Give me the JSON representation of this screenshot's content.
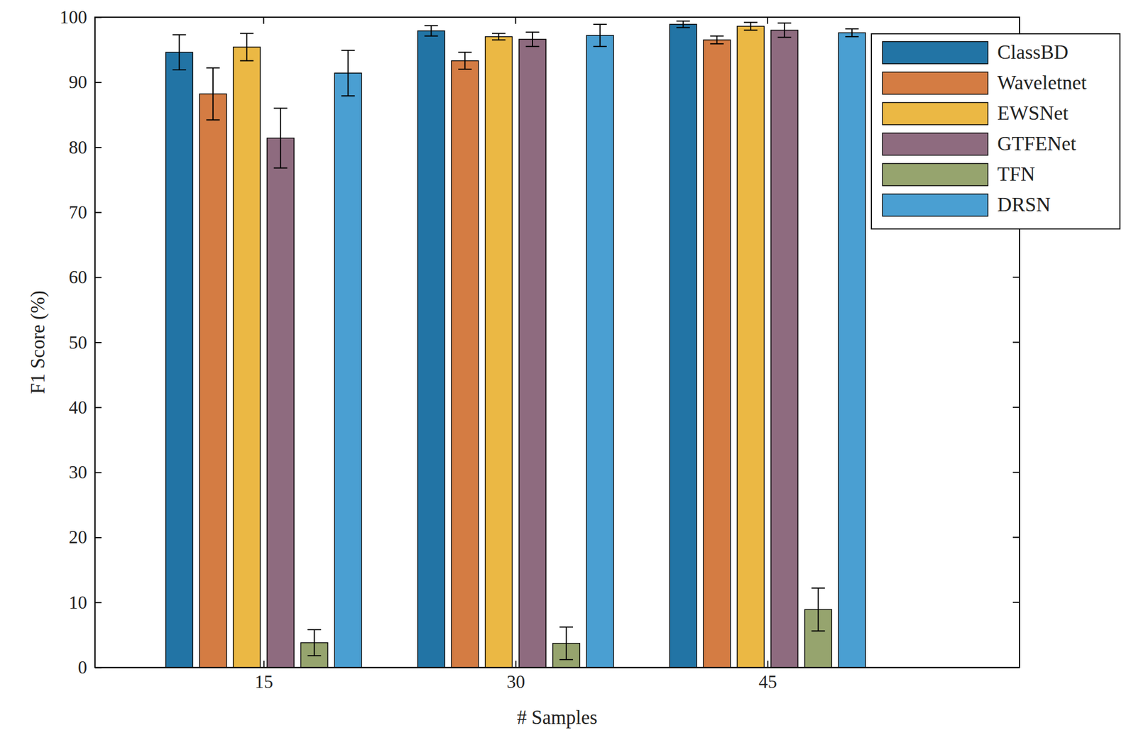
{
  "chart_data": {
    "type": "bar",
    "x_label": "# Samples",
    "y_label": "F1 Score (%)",
    "categories": [
      "15",
      "30",
      "45"
    ],
    "series": [
      {
        "name": "ClassBD",
        "color": "#2274a5",
        "values": [
          94.6,
          97.9,
          98.9
        ],
        "errors": [
          2.7,
          0.8,
          0.5
        ]
      },
      {
        "name": "Waveletnet",
        "color": "#d47c43",
        "values": [
          88.2,
          93.3,
          96.5
        ],
        "errors": [
          4.0,
          1.3,
          0.6
        ]
      },
      {
        "name": "EWSNet",
        "color": "#ebb844",
        "values": [
          95.4,
          97.0,
          98.6
        ],
        "errors": [
          2.1,
          0.5,
          0.6
        ]
      },
      {
        "name": "GTFENet",
        "color": "#8e6b7f",
        "values": [
          81.4,
          96.6,
          98.0
        ],
        "errors": [
          4.6,
          1.1,
          1.1
        ]
      },
      {
        "name": "TFN",
        "color": "#96a46e",
        "values": [
          3.8,
          3.7,
          8.9
        ],
        "errors": [
          2.0,
          2.5,
          3.3
        ]
      },
      {
        "name": "DRSN",
        "color": "#4a9fd2",
        "values": [
          91.4,
          97.2,
          97.6
        ],
        "errors": [
          3.5,
          1.7,
          0.6
        ]
      }
    ],
    "ylim": [
      0,
      100
    ],
    "yticks": [
      0,
      10,
      20,
      30,
      40,
      50,
      60,
      70,
      80,
      90,
      100
    ],
    "grid": false,
    "legend": "top-right"
  }
}
